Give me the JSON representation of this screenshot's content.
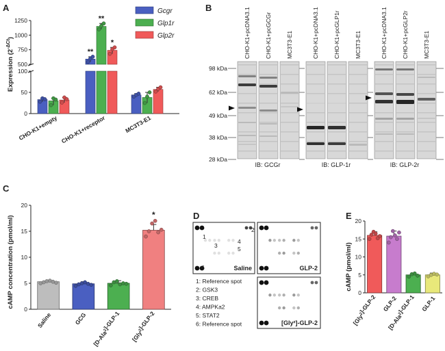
{
  "panels": {
    "A": "A",
    "B": "B",
    "C": "C",
    "D": "D",
    "E": "E"
  },
  "chart_data": [
    {
      "type": "bar",
      "panel": "A",
      "ylabel": "Expression (2^-ΔCt)",
      "broken_axis": true,
      "ylim_lower": [
        0,
        100
      ],
      "ylim_upper": [
        500,
        1250
      ],
      "lower_ticks": [
        "0",
        "50",
        "100"
      ],
      "upper_ticks": [
        "500",
        "750",
        "1000",
        "1250"
      ],
      "categories": [
        "CHO-K1+empty",
        "CHO-K1+receptor",
        "MC3T3-E1"
      ],
      "series": [
        {
          "name": "Gcgr",
          "color": "#4a5fc1",
          "values": [
            33,
            590,
            44
          ],
          "points": [
            [
              28,
              36,
              34
            ],
            [
              540,
              600,
              630
            ],
            [
              40,
              44,
              47
            ]
          ]
        },
        {
          "name": "Glp1r",
          "color": "#4caf50",
          "values": [
            30,
            1150,
            38
          ],
          "points": [
            [
              20,
              36,
              33
            ],
            [
              1100,
              1160,
              1200
            ],
            [
              25,
              40,
              50
            ]
          ]
        },
        {
          "name": "Glp2r",
          "color": "#f05a5a",
          "values": [
            32,
            740,
            57
          ],
          "points": [
            [
              26,
              38,
              34
            ],
            [
              680,
              760,
              790
            ],
            [
              52,
              58,
              62
            ]
          ]
        }
      ],
      "significance": [
        "**",
        "**",
        "*"
      ]
    },
    {
      "type": "bar",
      "panel": "C",
      "ylabel": "cAMP concentration (pmol/ml)",
      "ylim": [
        0,
        20
      ],
      "ticks": [
        "0",
        "5",
        "10",
        "15",
        "20"
      ],
      "categories": [
        "Saline",
        "GCG",
        "[D-Ala²]-GLP-1",
        "[Gly²]-GLP-2"
      ],
      "values": [
        5.3,
        4.9,
        5.0,
        15.2
      ],
      "errors": [
        0.3,
        0.4,
        0.5,
        1.1
      ],
      "colors": [
        "#bdbdbd",
        "#4a5fc1",
        "#4caf50",
        "#f08080"
      ],
      "points": [
        [
          5.0,
          5.2,
          5.4,
          5.5,
          5.3,
          5.1
        ],
        [
          4.5,
          4.8,
          5.0,
          5.2,
          4.9,
          4.7
        ],
        [
          4.6,
          5.2,
          5.4,
          4.8,
          5.0,
          4.9
        ],
        [
          14.0,
          15.0,
          16.5,
          17.0,
          14.8,
          15.3
        ]
      ],
      "significance": "*"
    },
    {
      "type": "bar",
      "panel": "E",
      "ylabel": "cAMP (pmol/ml)",
      "ylim": [
        0,
        20
      ],
      "ticks": [
        "0",
        "5",
        "10",
        "15",
        "20"
      ],
      "categories": [
        "[Gly²]-GLP-2",
        "GLP-2",
        "[D-Ala²]-GLP-1",
        "GLP-1"
      ],
      "values": [
        16.0,
        15.8,
        5.0,
        5.0
      ],
      "errors": [
        1.0,
        1.4,
        0.5,
        0.5
      ],
      "colors": [
        "#f05a5a",
        "#c77ccd",
        "#4caf50",
        "#e8e87a"
      ],
      "points": [
        [
          15.0,
          16.2,
          17.0,
          16.5,
          15.2,
          15.8
        ],
        [
          14.0,
          15.5,
          17.2,
          16.0,
          15.0,
          16.8
        ],
        [
          4.5,
          5.2,
          5.4,
          4.8
        ],
        [
          4.6,
          5.0,
          5.3,
          5.1
        ]
      ]
    }
  ],
  "blot": {
    "lane_labels": [
      "CHO-K1+pcDNA3.1",
      "CHO-K1+pcGCGr",
      "MC3T3-E1",
      "CHO-K1+pcDNA3.1",
      "CHO-K1+pcGLP1r",
      "MC3T3-E1",
      "CHO-K1+pcDNA3.1",
      "CHO-K1+pcGLP2r",
      "MC3T3-E1"
    ],
    "markers": [
      "98 kDa",
      "62 kDa",
      "49 kDa",
      "38 kDa",
      "28 kDa"
    ],
    "ib_labels": [
      "IB: GCGr",
      "IB: GLP-1r",
      "IB: GLP-2r"
    ]
  },
  "array": {
    "labels": [
      "Saline",
      "GLP-2",
      "[Gly²]-GLP-2"
    ],
    "spot_numbers": [
      "1",
      "2",
      "3",
      "4",
      "5",
      "6"
    ],
    "legend": [
      "1: Reference spot",
      "2: GSK3",
      "3: CREB",
      "4: AMPKa2",
      "5: STAT2",
      "6: Reference spot"
    ]
  }
}
